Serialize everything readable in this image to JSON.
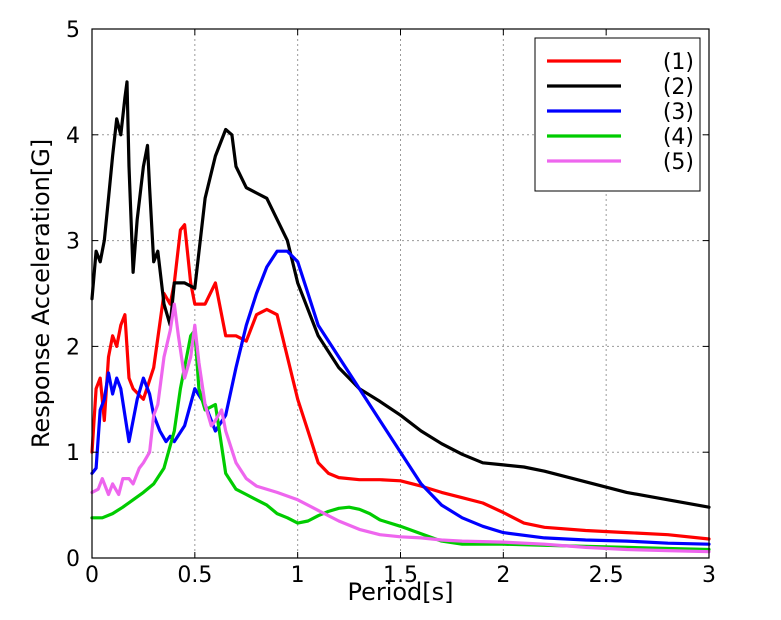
{
  "chart_data": {
    "type": "line",
    "title": "",
    "xlabel": "Period[s]",
    "ylabel": "Response Acceleration[G]",
    "xlim": [
      0,
      3
    ],
    "ylim": [
      0,
      5
    ],
    "xticks": [
      0,
      0.5,
      1,
      1.5,
      2,
      2.5,
      3
    ],
    "xtick_labels": [
      "0",
      "0.5",
      "1",
      "1.5",
      "2",
      "2.5",
      "3"
    ],
    "yticks": [
      0,
      1,
      2,
      3,
      4,
      5
    ],
    "ytick_labels": [
      "0",
      "1",
      "2",
      "3",
      "4",
      "5"
    ],
    "grid": true,
    "legend_position": "top-right",
    "series": [
      {
        "name": "(1)",
        "color": "#ff0000",
        "x": [
          0,
          0.02,
          0.04,
          0.06,
          0.08,
          0.1,
          0.12,
          0.14,
          0.16,
          0.18,
          0.2,
          0.25,
          0.3,
          0.35,
          0.38,
          0.4,
          0.43,
          0.45,
          0.48,
          0.5,
          0.55,
          0.6,
          0.65,
          0.7,
          0.75,
          0.8,
          0.85,
          0.9,
          0.95,
          1.0,
          1.05,
          1.1,
          1.15,
          1.2,
          1.3,
          1.4,
          1.5,
          1.6,
          1.7,
          1.8,
          1.9,
          2.0,
          2.1,
          2.2,
          2.4,
          2.6,
          2.8,
          3.0
        ],
        "y": [
          1.0,
          1.6,
          1.7,
          1.3,
          1.9,
          2.1,
          2.0,
          2.2,
          2.3,
          1.7,
          1.6,
          1.5,
          1.8,
          2.5,
          2.4,
          2.6,
          3.1,
          3.15,
          2.6,
          2.4,
          2.4,
          2.6,
          2.1,
          2.1,
          2.05,
          2.3,
          2.35,
          2.3,
          1.9,
          1.5,
          1.2,
          0.9,
          0.8,
          0.76,
          0.74,
          0.74,
          0.73,
          0.68,
          0.62,
          0.57,
          0.52,
          0.43,
          0.33,
          0.29,
          0.26,
          0.24,
          0.22,
          0.18
        ]
      },
      {
        "name": "(2)",
        "color": "#000000",
        "x": [
          0,
          0.02,
          0.04,
          0.06,
          0.08,
          0.1,
          0.12,
          0.14,
          0.16,
          0.17,
          0.18,
          0.2,
          0.22,
          0.25,
          0.27,
          0.28,
          0.3,
          0.32,
          0.35,
          0.38,
          0.4,
          0.45,
          0.5,
          0.55,
          0.6,
          0.65,
          0.68,
          0.7,
          0.75,
          0.8,
          0.85,
          0.9,
          0.95,
          1.0,
          1.1,
          1.2,
          1.3,
          1.4,
          1.5,
          1.6,
          1.7,
          1.8,
          1.9,
          2.0,
          2.1,
          2.2,
          2.4,
          2.6,
          2.8,
          3.0
        ],
        "y": [
          2.45,
          2.9,
          2.8,
          3.0,
          3.4,
          3.8,
          4.15,
          4.0,
          4.35,
          4.5,
          3.7,
          2.7,
          3.2,
          3.7,
          3.9,
          3.5,
          2.8,
          2.9,
          2.4,
          2.2,
          2.6,
          2.6,
          2.55,
          3.4,
          3.8,
          4.05,
          4.0,
          3.7,
          3.5,
          3.45,
          3.4,
          3.2,
          3.0,
          2.6,
          2.1,
          1.8,
          1.6,
          1.48,
          1.35,
          1.2,
          1.08,
          0.98,
          0.9,
          0.88,
          0.86,
          0.82,
          0.72,
          0.62,
          0.55,
          0.48
        ]
      },
      {
        "name": "(3)",
        "color": "#0000ff",
        "x": [
          0,
          0.02,
          0.04,
          0.06,
          0.08,
          0.1,
          0.12,
          0.14,
          0.16,
          0.18,
          0.2,
          0.22,
          0.25,
          0.28,
          0.3,
          0.33,
          0.36,
          0.38,
          0.4,
          0.45,
          0.5,
          0.55,
          0.6,
          0.65,
          0.7,
          0.75,
          0.8,
          0.85,
          0.9,
          0.95,
          1.0,
          1.05,
          1.1,
          1.2,
          1.3,
          1.4,
          1.5,
          1.6,
          1.7,
          1.8,
          1.9,
          2.0,
          2.2,
          2.4,
          2.6,
          2.8,
          3.0
        ],
        "y": [
          0.8,
          0.85,
          1.4,
          1.5,
          1.75,
          1.55,
          1.7,
          1.6,
          1.35,
          1.1,
          1.3,
          1.5,
          1.7,
          1.55,
          1.35,
          1.2,
          1.1,
          1.15,
          1.1,
          1.25,
          1.6,
          1.45,
          1.2,
          1.35,
          1.8,
          2.2,
          2.5,
          2.75,
          2.9,
          2.9,
          2.8,
          2.5,
          2.2,
          1.9,
          1.6,
          1.3,
          1.0,
          0.7,
          0.5,
          0.38,
          0.3,
          0.24,
          0.19,
          0.17,
          0.16,
          0.14,
          0.13
        ]
      },
      {
        "name": "(4)",
        "color": "#00cc00",
        "x": [
          0,
          0.05,
          0.1,
          0.15,
          0.2,
          0.25,
          0.3,
          0.35,
          0.4,
          0.43,
          0.46,
          0.48,
          0.5,
          0.52,
          0.55,
          0.6,
          0.65,
          0.7,
          0.75,
          0.8,
          0.85,
          0.9,
          0.95,
          1.0,
          1.05,
          1.1,
          1.15,
          1.2,
          1.25,
          1.3,
          1.35,
          1.4,
          1.5,
          1.6,
          1.7,
          1.8,
          2.0,
          2.2,
          2.4,
          2.6,
          2.8,
          3.0
        ],
        "y": [
          0.38,
          0.38,
          0.42,
          0.48,
          0.55,
          0.62,
          0.7,
          0.85,
          1.2,
          1.6,
          1.9,
          2.1,
          2.15,
          1.6,
          1.4,
          1.45,
          0.8,
          0.65,
          0.6,
          0.55,
          0.5,
          0.42,
          0.38,
          0.33,
          0.35,
          0.4,
          0.44,
          0.47,
          0.48,
          0.46,
          0.42,
          0.36,
          0.3,
          0.23,
          0.16,
          0.13,
          0.13,
          0.12,
          0.11,
          0.1,
          0.09,
          0.08
        ]
      },
      {
        "name": "(5)",
        "color": "#ee66ee",
        "x": [
          0,
          0.03,
          0.05,
          0.08,
          0.1,
          0.13,
          0.15,
          0.18,
          0.2,
          0.23,
          0.25,
          0.28,
          0.3,
          0.32,
          0.35,
          0.38,
          0.4,
          0.42,
          0.45,
          0.48,
          0.5,
          0.52,
          0.55,
          0.58,
          0.6,
          0.63,
          0.65,
          0.7,
          0.75,
          0.8,
          0.9,
          1.0,
          1.1,
          1.2,
          1.3,
          1.4,
          1.5,
          1.6,
          1.7,
          1.8,
          2.0,
          2.2,
          2.4,
          2.6,
          2.8,
          3.0
        ],
        "y": [
          0.62,
          0.65,
          0.75,
          0.6,
          0.7,
          0.6,
          0.75,
          0.75,
          0.7,
          0.85,
          0.9,
          1.0,
          1.35,
          1.45,
          1.9,
          2.15,
          2.4,
          2.1,
          1.7,
          1.9,
          2.2,
          1.85,
          1.45,
          1.25,
          1.3,
          1.4,
          1.2,
          0.9,
          0.75,
          0.68,
          0.62,
          0.55,
          0.45,
          0.35,
          0.27,
          0.22,
          0.2,
          0.19,
          0.17,
          0.16,
          0.15,
          0.13,
          0.1,
          0.08,
          0.07,
          0.06
        ]
      }
    ]
  }
}
